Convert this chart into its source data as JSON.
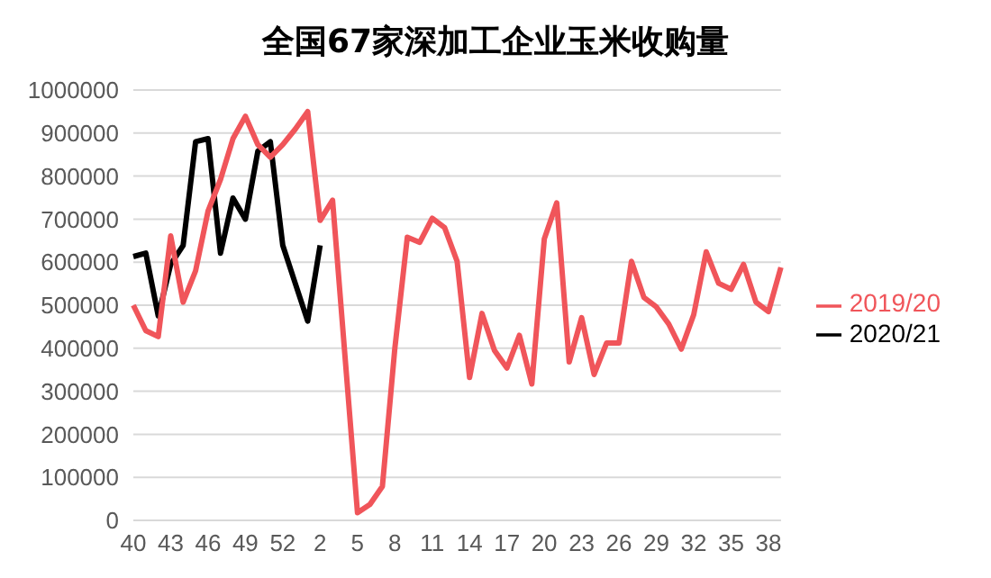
{
  "chart_data": {
    "type": "line",
    "title": "全国67家深加工企业玉米收购量",
    "categories": [
      "40",
      null,
      null,
      "43",
      null,
      null,
      "46",
      null,
      null,
      "49",
      null,
      null,
      "52",
      null,
      null,
      "2",
      null,
      null,
      "5",
      null,
      null,
      "8",
      null,
      null,
      "11",
      null,
      null,
      "14",
      null,
      null,
      "17",
      null,
      null,
      "20",
      null,
      null,
      "23",
      null,
      null,
      "26",
      null,
      null,
      "29",
      null,
      null,
      "32",
      null,
      null,
      "35",
      null,
      null,
      "38",
      null
    ],
    "series": [
      {
        "name": "2020/21",
        "color": "#000000",
        "values": [
          613000,
          621000,
          475000,
          595000,
          639000,
          880000,
          887000,
          621000,
          749000,
          700000,
          858000,
          880000,
          639000,
          551000,
          463000,
          639000,
          null,
          null,
          null,
          null,
          null,
          null,
          null,
          null,
          null,
          null,
          null,
          null,
          null,
          null,
          null,
          null,
          null,
          null,
          null,
          null,
          null,
          null,
          null,
          null,
          null,
          null,
          null,
          null,
          null,
          null,
          null,
          null,
          null,
          null,
          null,
          null,
          null
        ]
      },
      {
        "name": "2019/20",
        "color": "#f0555a",
        "values": [
          500000,
          441000,
          427000,
          661000,
          507000,
          580000,
          719000,
          792000,
          887000,
          939000,
          873000,
          844000,
          873000,
          909000,
          950000,
          697000,
          744000,
          380000,
          18000,
          37000,
          79000,
          400000,
          658000,
          646000,
          702000,
          680000,
          602000,
          332000,
          481000,
          395000,
          354000,
          430000,
          317000,
          654000,
          738000,
          368000,
          471000,
          339000,
          412000,
          412000,
          602000,
          518000,
          496000,
          456000,
          398000,
          478000,
          624000,
          551000,
          537000,
          595000,
          507000,
          485000,
          588000
        ]
      }
    ],
    "ylim": [
      0,
      1000000
    ],
    "yticks": [
      0,
      100000,
      200000,
      300000,
      400000,
      500000,
      600000,
      700000,
      800000,
      900000,
      1000000
    ],
    "grid": "y",
    "legend": "right",
    "marker": "none",
    "line_style": "solid"
  }
}
